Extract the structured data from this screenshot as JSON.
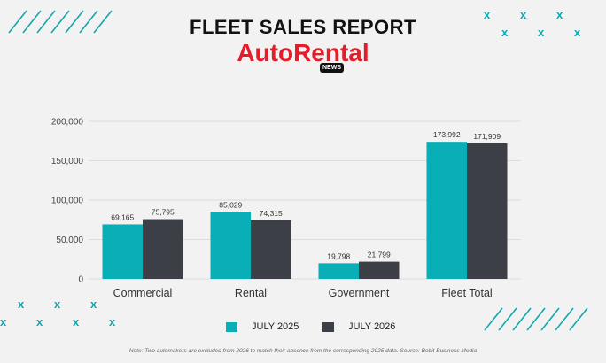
{
  "header": {
    "title": "FLEET SALES REPORT",
    "brand": "AutoRental",
    "badge": "NEWS"
  },
  "colors": {
    "series_2025": "#0aaeb6",
    "series_2026": "#3d3f47",
    "brand": "#e51d2a",
    "accent": "#12a6ae"
  },
  "decoration": {
    "x_mark": "x"
  },
  "chart_data": {
    "type": "bar",
    "categories": [
      "Commercial",
      "Rental",
      "Government",
      "Fleet Total"
    ],
    "series": [
      {
        "name": "JULY 2025",
        "values": [
          69165,
          85029,
          19798,
          173992
        ],
        "labels": [
          "69,165",
          "85,029",
          "19,798",
          "173,992"
        ]
      },
      {
        "name": "JULY 2026",
        "values": [
          75795,
          74315,
          21799,
          171909
        ],
        "labels": [
          "75,795",
          "74,315",
          "21,799",
          "171,909"
        ]
      }
    ],
    "yticks": [
      "0",
      "50,000",
      "100,000",
      "150,000",
      "200,000"
    ],
    "ylim": [
      0,
      200000
    ],
    "grid": true,
    "legend_position": "bottom-center"
  },
  "legend": {
    "item_2025": "JULY 2025",
    "item_2026": "JULY 2026"
  },
  "footer": {
    "note": "Note: Two automakers are excluded from 2026 to match their absence from the corresponding 2025 data.  Source: Bobit Business Media"
  }
}
